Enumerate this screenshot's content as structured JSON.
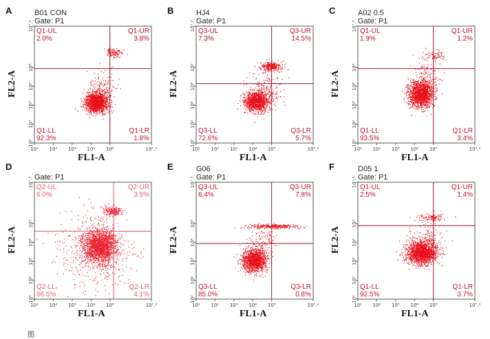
{
  "figure": {
    "caption": "图"
  },
  "chart_data": [
    {
      "type": "scatter",
      "panel_letter": "A",
      "sample_name": "B01 CON",
      "gate": "Gate: P1",
      "xlabel": "FL1-A",
      "ylabel": "FL2-A",
      "xlim": [
        1,
        7.2
      ],
      "ylim": [
        1,
        7.2
      ],
      "x_ticks": [
        "10¹",
        "10²",
        "10³",
        "10⁴",
        "10⁵",
        "10⁷.²"
      ],
      "y_ticks": [
        "10¹",
        "10²",
        "10³",
        "10⁴",
        "10⁵",
        "10⁷.²"
      ],
      "quadrant_divider": {
        "x": 5.0,
        "y": 4.95
      },
      "quadrants": [
        {
          "label": "Q1-UL",
          "value": "2.0%"
        },
        {
          "label": "Q1-UR",
          "value": "3.8%"
        },
        {
          "label": "Q1-LL",
          "value": "92.3%"
        },
        {
          "label": "Q1-LR",
          "value": "1.8%"
        }
      ],
      "populations": [
        {
          "cx": 4.3,
          "cy": 3.15,
          "sx": 0.3,
          "sy": 0.27,
          "n": 1400
        },
        {
          "cx": 5.2,
          "cy": 5.8,
          "sx": 0.25,
          "sy": 0.12,
          "n": 110
        },
        {
          "cx": 4.6,
          "cy": 4.0,
          "sx": 0.4,
          "sy": 0.45,
          "n": 120
        }
      ],
      "point_color": "#e8101a",
      "line_color": "#a0102a",
      "label_color": "#c0102a"
    },
    {
      "type": "scatter",
      "panel_letter": "B",
      "sample_name": "HJ4",
      "gate": "Gate: P1",
      "xlabel": "FL1-A",
      "ylabel": "FL2-A",
      "xlim": [
        1,
        7.2
      ],
      "ylim": [
        1,
        7.2
      ],
      "x_ticks": [
        "10¹",
        "10²",
        "10³",
        "10⁴",
        "10⁵",
        "10⁷.²"
      ],
      "y_ticks": [
        "10¹",
        "10²",
        "10³",
        "10⁴",
        "10⁵",
        "10⁷.²"
      ],
      "quadrant_divider": {
        "x": 5.0,
        "y": 4.15
      },
      "quadrants": [
        {
          "label": "Q3-UL",
          "value": "7.3%"
        },
        {
          "label": "Q3-UR",
          "value": "14.5%"
        },
        {
          "label": "Q3-LL",
          "value": "72.6%"
        },
        {
          "label": "Q3-LR",
          "value": "5.7%"
        }
      ],
      "populations": [
        {
          "cx": 4.2,
          "cy": 3.2,
          "sx": 0.32,
          "sy": 0.27,
          "n": 1150
        },
        {
          "cx": 5.0,
          "cy": 5.05,
          "sx": 0.27,
          "sy": 0.12,
          "n": 280
        },
        {
          "cx": 4.7,
          "cy": 3.8,
          "sx": 0.45,
          "sy": 0.5,
          "n": 180
        }
      ],
      "point_color": "#e8101a",
      "line_color": "#a0102a",
      "label_color": "#c0102a"
    },
    {
      "type": "scatter",
      "panel_letter": "C",
      "sample_name": "A02 0.5",
      "gate": "Gate: P1",
      "xlabel": "FL1-A",
      "ylabel": "FL2-A",
      "xlim": [
        1,
        7.2
      ],
      "ylim": [
        1,
        7.2
      ],
      "x_ticks": [
        "10¹",
        "10²",
        "10³",
        "10⁴",
        "10⁵",
        "10⁷.²"
      ],
      "y_ticks": [
        "10¹",
        "10²",
        "10³",
        "10⁴",
        "10⁵",
        "10⁷.²"
      ],
      "quadrant_divider": {
        "x": 5.0,
        "y": 4.95
      },
      "quadrants": [
        {
          "label": "Q1-UL",
          "value": "1.9%"
        },
        {
          "label": "Q1-UR",
          "value": "1.2%"
        },
        {
          "label": "Q1-LL",
          "value": "93.5%"
        },
        {
          "label": "Q1-LR",
          "value": "3.4%"
        }
      ],
      "populations": [
        {
          "cx": 4.35,
          "cy": 3.6,
          "sx": 0.32,
          "sy": 0.35,
          "n": 1500
        },
        {
          "cx": 5.1,
          "cy": 5.6,
          "sx": 0.3,
          "sy": 0.15,
          "n": 70
        },
        {
          "cx": 4.7,
          "cy": 4.5,
          "sx": 0.4,
          "sy": 0.5,
          "n": 120
        }
      ],
      "point_color": "#e8101a",
      "line_color": "#a0102a",
      "label_color": "#c0102a"
    },
    {
      "type": "scatter",
      "panel_letter": "D",
      "sample_name": "",
      "gate": "Gate: P1",
      "xlabel": "FL1-A",
      "ylabel": "FL2-A",
      "xlim": [
        1,
        7.2
      ],
      "ylim": [
        1,
        7.2
      ],
      "x_ticks": [
        "10¹",
        "10²",
        "10³",
        "10⁴",
        "10⁵",
        "10⁷.²"
      ],
      "y_ticks": [
        "10¹",
        "10²",
        "10³",
        "10⁴",
        "10⁵",
        "10⁷.²"
      ],
      "quadrant_divider": {
        "x": 5.2,
        "y": 4.6
      },
      "quadrants": [
        {
          "label": "Q2-UL",
          "value": "6.0%"
        },
        {
          "label": "Q2-UR",
          "value": "3.5%"
        },
        {
          "label": "Q2-LL",
          "value": "86.5%"
        },
        {
          "label": "Q2-LR",
          "value": "4.1%"
        }
      ],
      "populations": [
        {
          "cx": 4.5,
          "cy": 3.8,
          "sx": 0.45,
          "sy": 0.45,
          "n": 1900
        },
        {
          "cx": 5.15,
          "cy": 5.65,
          "sx": 0.25,
          "sy": 0.12,
          "n": 200
        },
        {
          "cx": 4.2,
          "cy": 3.5,
          "sx": 1.0,
          "sy": 1.1,
          "n": 500
        }
      ],
      "point_color": "#ee2030",
      "line_color": "#e05060",
      "label_color": "#e06070"
    },
    {
      "type": "scatter",
      "panel_letter": "E",
      "sample_name": "G06",
      "gate": "Gate: P1",
      "xlabel": "FL1-A",
      "ylabel": "FL2-A",
      "xlim": [
        1,
        7.2
      ],
      "ylim": [
        1,
        7.2
      ],
      "x_ticks": [
        "10¹",
        "10²",
        "10³",
        "10⁴",
        "10⁵",
        "10⁷.²"
      ],
      "y_ticks": [
        "10¹",
        "10²",
        "10³",
        "10⁴",
        "10⁵",
        "10⁷.²"
      ],
      "quadrant_divider": {
        "x": 5.0,
        "y": 3.95
      },
      "quadrants": [
        {
          "label": "Q3-UL",
          "value": "6.4%"
        },
        {
          "label": "Q3-UR",
          "value": "7.8%"
        },
        {
          "label": "Q3-LL",
          "value": "85.0%"
        },
        {
          "label": "Q3-LR",
          "value": "0.8%"
        }
      ],
      "populations": [
        {
          "cx": 4.1,
          "cy": 3.05,
          "sx": 0.32,
          "sy": 0.3,
          "n": 1300
        },
        {
          "cx": 5.05,
          "cy": 4.85,
          "sx": 0.7,
          "sy": 0.06,
          "n": 260
        },
        {
          "cx": 4.6,
          "cy": 4.1,
          "sx": 0.35,
          "sy": 0.35,
          "n": 100
        }
      ],
      "point_color": "#e8101a",
      "line_color": "#a0102a",
      "label_color": "#c0102a"
    },
    {
      "type": "scatter",
      "panel_letter": "F",
      "sample_name": "D05 1",
      "gate": "Gate: P1",
      "xlabel": "FL1-A",
      "ylabel": "FL2-A",
      "xlim": [
        1,
        7.2
      ],
      "ylim": [
        1,
        7.2
      ],
      "x_ticks": [
        "10¹",
        "10²",
        "10³",
        "10⁴",
        "10⁵",
        "10⁷.²"
      ],
      "y_ticks": [
        "10¹",
        "10²",
        "10³",
        "10⁴",
        "10⁵",
        "10⁷.²"
      ],
      "quadrant_divider": {
        "x": 5.0,
        "y": 4.9
      },
      "quadrants": [
        {
          "label": "Q1-UL",
          "value": "2.5%"
        },
        {
          "label": "Q1-UR",
          "value": "1.4%"
        },
        {
          "label": "Q1-LL",
          "value": "92.5%"
        },
        {
          "label": "Q1-LR",
          "value": "3.7%"
        }
      ],
      "populations": [
        {
          "cx": 4.4,
          "cy": 3.45,
          "sx": 0.4,
          "sy": 0.3,
          "n": 1600
        },
        {
          "cx": 4.9,
          "cy": 5.3,
          "sx": 0.4,
          "sy": 0.12,
          "n": 110
        },
        {
          "cx": 4.6,
          "cy": 4.0,
          "sx": 0.45,
          "sy": 0.5,
          "n": 140
        }
      ],
      "point_color": "#e8101a",
      "line_color": "#a0102a",
      "label_color": "#c0102a"
    }
  ]
}
